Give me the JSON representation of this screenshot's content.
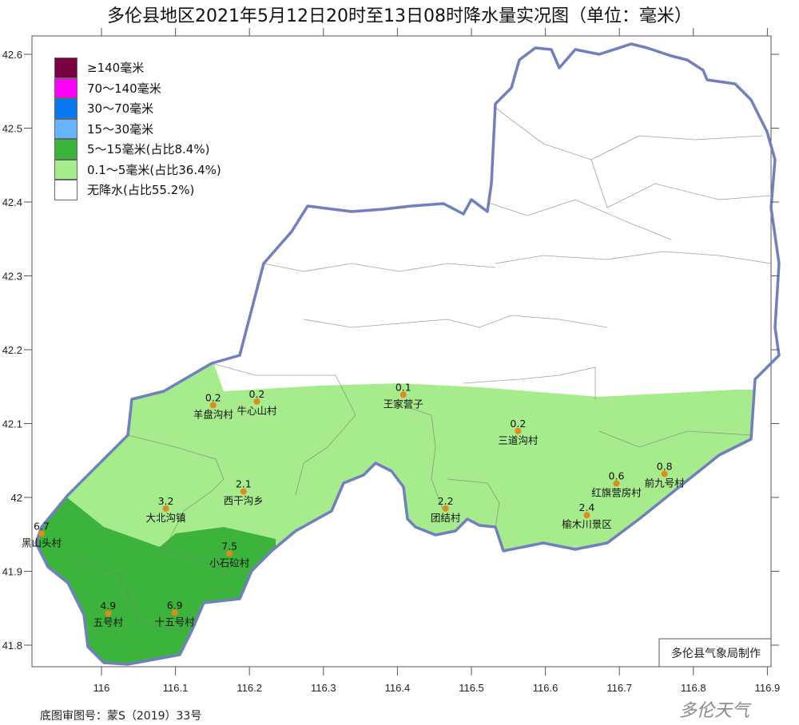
{
  "title": "多伦县地区2021年5月12日20时至13日08时降水量实况图（单位：毫米）",
  "legend": [
    {
      "label": "≥140毫米",
      "color": "#7a0040"
    },
    {
      "label": "70～140毫米",
      "color": "#ff00ff"
    },
    {
      "label": "30～70毫米",
      "color": "#0a78f0"
    },
    {
      "label": "15～30毫米",
      "color": "#66b4ff"
    },
    {
      "label": "5～15毫米(占比8.4%)",
      "color": "#3cb43c"
    },
    {
      "label": "0.1～5毫米(占比36.4%)",
      "color": "#a6ec8c"
    },
    {
      "label": "无降水(占比55.2%)",
      "color": "#ffffff"
    }
  ],
  "axes": {
    "lon_ticks": [
      "116",
      "116.1",
      "116.2",
      "116.3",
      "116.4",
      "116.5",
      "116.6",
      "116.7",
      "116.8",
      "116.9"
    ],
    "lat_ticks": [
      "42.6",
      "42.5",
      "42.4",
      "42.3",
      "42.2",
      "42.1",
      "42",
      "41.9",
      "41.8"
    ]
  },
  "stations": [
    {
      "name": "羊盘沟村",
      "value": "0.2",
      "lon": 116.151,
      "lat": 42.125
    },
    {
      "name": "牛心山村",
      "value": "0.2",
      "lon": 116.21,
      "lat": 42.13
    },
    {
      "name": "王家营子",
      "value": "0.1",
      "lon": 116.408,
      "lat": 42.139
    },
    {
      "name": "三道沟村",
      "value": "0.2",
      "lon": 116.563,
      "lat": 42.09
    },
    {
      "name": "红旗营房村",
      "value": "0.6",
      "lon": 116.696,
      "lat": 42.019
    },
    {
      "name": "前九号村",
      "value": "0.8",
      "lon": 116.761,
      "lat": 42.032
    },
    {
      "name": "榆木川景区",
      "value": "2.4",
      "lon": 116.656,
      "lat": 41.976
    },
    {
      "name": "团结村",
      "value": "2.2",
      "lon": 116.465,
      "lat": 41.985
    },
    {
      "name": "西干沟乡",
      "value": "2.1",
      "lon": 116.192,
      "lat": 42.008
    },
    {
      "name": "大北沟镇",
      "value": "3.2",
      "lon": 116.087,
      "lat": 41.985
    },
    {
      "name": "黑山头村",
      "value": "6.7",
      "lon": 115.919,
      "lat": 41.951
    },
    {
      "name": "小石砬村",
      "value": "7.5",
      "lon": 116.173,
      "lat": 41.924
    },
    {
      "name": "五号村",
      "value": "4.9",
      "lon": 116.009,
      "lat": 41.843
    },
    {
      "name": "十五号村",
      "value": "6.9",
      "lon": 116.099,
      "lat": 41.844
    }
  ],
  "credit": "多伦县气象局制作",
  "source": "底图审图号：蒙S（2019）33号",
  "watermark": "多伦天气",
  "colors": {
    "boundary": "#6f7fc0",
    "station_dot": "#e08a1e"
  }
}
